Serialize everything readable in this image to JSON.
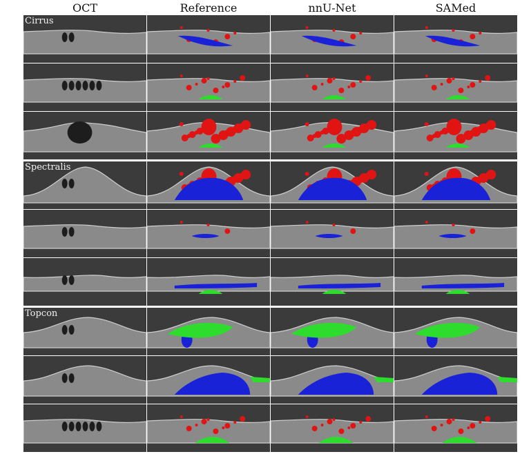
{
  "columns": [
    "OCT",
    "Reference",
    "nnU-Net",
    "SAMed"
  ],
  "sections": [
    {
      "device": "Cirrus",
      "rows": [
        {
          "kind": "pigment-detachment",
          "red": "sparse",
          "blue": "large",
          "green": "none"
        },
        {
          "kind": "cystoid",
          "red": "medium",
          "blue": "none",
          "green": "small"
        },
        {
          "kind": "large-cyst",
          "red": "dense",
          "blue": "none",
          "green": "small"
        }
      ]
    },
    {
      "device": "Spectralis",
      "rows": [
        {
          "kind": "dome",
          "red": "dense",
          "blue": "dome",
          "green": "none"
        },
        {
          "kind": "flat",
          "red": "few",
          "blue": "small",
          "green": "none"
        },
        {
          "kind": "thin-band",
          "red": "none",
          "blue": "band",
          "green": "small"
        }
      ]
    },
    {
      "device": "Topcon",
      "rows": [
        {
          "kind": "bump",
          "red": "none",
          "blue": "small",
          "green": "large"
        },
        {
          "kind": "big-bump",
          "red": "none",
          "blue": "very-large",
          "green": "edge"
        },
        {
          "kind": "cystoid",
          "red": "medium",
          "blue": "none",
          "green": "medium"
        }
      ]
    }
  ],
  "colors": {
    "background": "#ffffff",
    "scan": "#3b3b3b",
    "retina": "#8a8a8a",
    "fluid_red": "#e11414",
    "fluid_blue": "#1a22d8",
    "fluid_green": "#2ddc2d",
    "separator": "#ffffff"
  }
}
